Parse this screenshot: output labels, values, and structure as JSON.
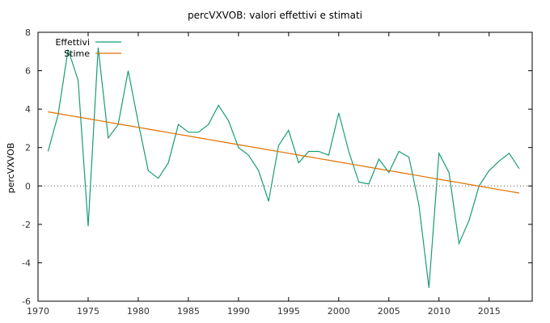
{
  "chart_data": {
    "type": "line",
    "title": "percVXVOB: valori effettivi e stimati",
    "xlabel": "",
    "ylabel": "percVXVOB",
    "xlim": [
      1970,
      2019.3
    ],
    "ylim": [
      -6,
      8
    ],
    "x_ticks": [
      1970,
      1975,
      1980,
      1985,
      1990,
      1995,
      2000,
      2005,
      2010,
      2015
    ],
    "y_ticks": [
      -6,
      -4,
      -2,
      0,
      2,
      4,
      6,
      8
    ],
    "zero_line": true,
    "legend_position": "top-left",
    "x": [
      1971,
      1972,
      1973,
      1974,
      1975,
      1976,
      1977,
      1978,
      1979,
      1980,
      1981,
      1982,
      1983,
      1984,
      1985,
      1986,
      1987,
      1988,
      1989,
      1990,
      1991,
      1992,
      1993,
      1994,
      1995,
      1996,
      1997,
      1998,
      1999,
      2000,
      2001,
      2002,
      2003,
      2004,
      2005,
      2006,
      2007,
      2008,
      2009,
      2010,
      2011,
      2012,
      2013,
      2014,
      2015,
      2016,
      2017,
      2018
    ],
    "series": [
      {
        "name": "Effettivi",
        "color": "#1a9b78",
        "values": [
          1.8,
          3.7,
          7.1,
          5.5,
          -2.1,
          7.2,
          2.5,
          3.2,
          6.0,
          3.3,
          0.8,
          0.4,
          1.2,
          3.2,
          2.8,
          2.8,
          3.2,
          4.2,
          3.4,
          2.0,
          1.6,
          0.8,
          -0.8,
          2.1,
          2.9,
          1.2,
          1.8,
          1.8,
          1.6,
          3.8,
          1.8,
          0.2,
          0.1,
          1.4,
          0.7,
          1.8,
          1.5,
          -1.0,
          -5.3,
          1.7,
          0.7,
          -3.0,
          -1.8,
          -0.0,
          0.8,
          1.3,
          1.7,
          0.9
        ]
      },
      {
        "name": "Stime",
        "color": "#e07000",
        "values": [
          3.86,
          3.77,
          3.68,
          3.59,
          3.5,
          3.41,
          3.32,
          3.23,
          3.14,
          3.05,
          2.96,
          2.87,
          2.78,
          2.69,
          2.6,
          2.51,
          2.42,
          2.33,
          2.24,
          2.15,
          2.06,
          1.97,
          1.88,
          1.79,
          1.7,
          1.61,
          1.52,
          1.43,
          1.34,
          1.25,
          1.16,
          1.07,
          0.98,
          0.89,
          0.8,
          0.71,
          0.62,
          0.53,
          0.44,
          0.35,
          0.26,
          0.17,
          0.08,
          -0.01,
          -0.1,
          -0.19,
          -0.28,
          -0.37
        ]
      }
    ]
  }
}
